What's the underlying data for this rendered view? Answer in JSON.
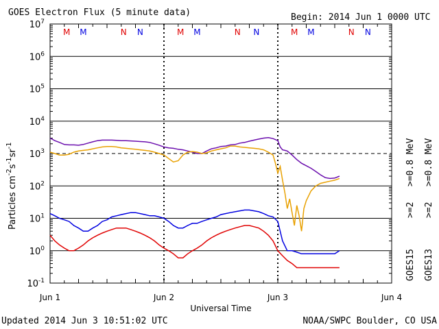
{
  "chart_data": {
    "type": "line",
    "title": "GOES Electron Flux (5 minute data)",
    "begin_label": "Begin: 2014 Jun 1 0000 UTC",
    "xlabel": "Universal Time",
    "ylabel_main": "Particles cm",
    "ylabel_exp1": "-2",
    "ylabel_s": "s",
    "ylabel_exp2": "-1",
    "ylabel_sr": "sr",
    "ylabel_exp3": "-1",
    "updated_label": "Updated 2014 Jun  3 10:51:02 UTC",
    "credit_label": "NOAA/SWPC Boulder, CO USA",
    "x_ticks": [
      "Jun 1",
      "Jun 2",
      "Jun 3",
      "Jun 4"
    ],
    "xlim_hours": [
      0,
      72
    ],
    "ylim": [
      0.1,
      10000000
    ],
    "y_ticks": [
      {
        "base": "10",
        "exp": "-1",
        "value": 0.1
      },
      {
        "base": "10",
        "exp": "0",
        "value": 1
      },
      {
        "base": "10",
        "exp": "1",
        "value": 10
      },
      {
        "base": "10",
        "exp": "2",
        "value": 100
      },
      {
        "base": "10",
        "exp": "3",
        "value": 1000
      },
      {
        "base": "10",
        "exp": "4",
        "value": 10000
      },
      {
        "base": "10",
        "exp": "5",
        "value": 100000
      },
      {
        "base": "10",
        "exp": "6",
        "value": 1000000
      },
      {
        "base": "10",
        "exp": "7",
        "value": 10000000
      }
    ],
    "y_scale": "log",
    "threshold": 1000,
    "markers": [
      {
        "label": "M",
        "hour": 3.5,
        "color": "#e00000"
      },
      {
        "label": "M",
        "hour": 7.0,
        "color": "#0000e0"
      },
      {
        "label": "N",
        "hour": 15.5,
        "color": "#e00000"
      },
      {
        "label": "N",
        "hour": 19.0,
        "color": "#0000e0"
      },
      {
        "label": "M",
        "hour": 27.5,
        "color": "#e00000"
      },
      {
        "label": "M",
        "hour": 31.0,
        "color": "#0000e0"
      },
      {
        "label": "N",
        "hour": 39.5,
        "color": "#e00000"
      },
      {
        "label": "N",
        "hour": 43.5,
        "color": "#0000e0"
      },
      {
        "label": "M",
        "hour": 51.5,
        "color": "#e00000"
      },
      {
        "label": "M",
        "hour": 55.0,
        "color": "#0000e0"
      },
      {
        "label": "N",
        "hour": 63.5,
        "color": "#e00000"
      },
      {
        "label": "N",
        "hour": 67.0,
        "color": "#0000e0"
      }
    ],
    "legend": [
      {
        "sat": "GOES15",
        "label": "0.8",
        "color": "#6a0dad"
      },
      {
        "sat": "GOES15",
        "label": "2",
        "color": "#0000e0"
      },
      {
        "sat": "GOES13",
        "label": "0.8",
        "color": "#e8a000"
      },
      {
        "sat": "GOES13",
        "label": "2",
        "color": "#e00000"
      }
    ],
    "legend_text": {
      "g15": "GOES15",
      "g13": "GOES13",
      "purple": ">=0.8 MeV",
      "blue": ">=2",
      "orange": ">=0.8 MeV",
      "red": ">=2"
    },
    "series": [
      {
        "name": ">=0.8 MeV",
        "color": "#6a0dad",
        "x": [
          0,
          1,
          2,
          3,
          4,
          5,
          6,
          7,
          8,
          9,
          10,
          11,
          12,
          13,
          14,
          15,
          16,
          17,
          18,
          19,
          20,
          21,
          22,
          23,
          24,
          25,
          26,
          27,
          28,
          29,
          30,
          31,
          32,
          33,
          34,
          35,
          36,
          37,
          38,
          39,
          40,
          41,
          42,
          43,
          44,
          45,
          46,
          47,
          48,
          48.5,
          49,
          49.5,
          50,
          51,
          52,
          53,
          54,
          55,
          56,
          57,
          58,
          59,
          60,
          61
        ],
        "y": [
          3000,
          2500,
          2200,
          1900,
          1850,
          1850,
          1800,
          1900,
          2100,
          2300,
          2500,
          2600,
          2600,
          2600,
          2550,
          2500,
          2500,
          2450,
          2400,
          2350,
          2300,
          2200,
          2000,
          1800,
          1600,
          1500,
          1450,
          1350,
          1300,
          1200,
          1100,
          1000,
          1000,
          1200,
          1400,
          1500,
          1650,
          1700,
          1850,
          1900,
          2100,
          2200,
          2400,
          2600,
          2800,
          3000,
          3100,
          2900,
          2500,
          1600,
          1300,
          1250,
          1200,
          900,
          650,
          500,
          420,
          350,
          280,
          220,
          180,
          170,
          175,
          200
        ]
      },
      {
        "name": ">=0.8 MeV",
        "color": "#e8a000",
        "x": [
          0,
          1,
          2,
          3,
          4,
          5,
          6,
          7,
          8,
          9,
          10,
          11,
          12,
          13,
          14,
          15,
          16,
          17,
          18,
          19,
          20,
          21,
          22,
          23,
          24,
          25,
          26,
          27,
          28,
          29,
          30,
          31,
          32,
          33,
          34,
          35,
          36,
          37,
          38,
          39,
          40,
          41,
          42,
          43,
          44,
          45,
          46,
          47,
          47.5,
          48,
          48.5,
          49,
          49.5,
          50,
          50.5,
          51,
          51.5,
          52,
          52.5,
          53,
          53.5,
          54,
          55,
          56,
          57,
          58,
          59,
          60,
          61
        ],
        "y": [
          1100,
          1000,
          900,
          900,
          950,
          1100,
          1200,
          1250,
          1300,
          1400,
          1500,
          1600,
          1650,
          1650,
          1600,
          1500,
          1450,
          1400,
          1350,
          1300,
          1250,
          1200,
          1100,
          1000,
          900,
          700,
          550,
          600,
          900,
          1100,
          1150,
          1100,
          1000,
          1050,
          1200,
          1300,
          1400,
          1500,
          1700,
          1700,
          1600,
          1550,
          1500,
          1450,
          1400,
          1300,
          1100,
          900,
          500,
          250,
          400,
          150,
          60,
          20,
          40,
          15,
          6,
          25,
          12,
          4,
          20,
          35,
          70,
          100,
          120,
          130,
          140,
          150,
          170
        ]
      },
      {
        "name": ">=2",
        "color": "#0000e0",
        "x": [
          0,
          1,
          2,
          3,
          4,
          5,
          6,
          7,
          8,
          9,
          10,
          11,
          12,
          13,
          14,
          15,
          16,
          17,
          18,
          19,
          20,
          21,
          22,
          23,
          24,
          25,
          26,
          27,
          28,
          29,
          30,
          31,
          32,
          33,
          34,
          35,
          36,
          37,
          38,
          39,
          40,
          41,
          42,
          43,
          44,
          45,
          46,
          47,
          48,
          49,
          50,
          51,
          52,
          53,
          54,
          55,
          56,
          57,
          58,
          59,
          60,
          61
        ],
        "y": [
          14,
          12,
          10,
          9,
          8,
          6,
          5,
          4,
          4,
          5,
          6,
          8,
          9,
          11,
          12,
          13,
          14,
          15,
          15,
          14,
          13,
          12,
          12,
          11,
          10,
          8,
          6,
          5,
          5,
          6,
          7,
          7,
          8,
          9,
          10,
          11,
          13,
          14,
          15,
          16,
          17,
          18,
          18,
          17,
          16,
          14,
          12,
          11,
          8,
          2,
          1,
          1,
          0.9,
          0.8,
          0.8,
          0.8,
          0.8,
          0.8,
          0.8,
          0.8,
          0.8,
          1
        ]
      },
      {
        "name": ">=2",
        "color": "#e00000",
        "x": [
          0,
          1,
          2,
          3,
          4,
          5,
          6,
          7,
          8,
          9,
          10,
          11,
          12,
          13,
          14,
          15,
          16,
          17,
          18,
          19,
          20,
          21,
          22,
          23,
          24,
          25,
          26,
          27,
          28,
          29,
          30,
          31,
          32,
          33,
          34,
          35,
          36,
          37,
          38,
          39,
          40,
          41,
          42,
          43,
          44,
          45,
          46,
          47,
          48,
          49,
          50,
          51,
          52,
          53,
          54,
          55,
          56,
          57,
          58,
          59,
          60,
          61
        ],
        "y": [
          3,
          2,
          1.5,
          1.2,
          1,
          1,
          1.2,
          1.5,
          2,
          2.5,
          3,
          3.5,
          4,
          4.5,
          5,
          5,
          5,
          4.5,
          4,
          3.5,
          3,
          2.5,
          2,
          1.5,
          1.2,
          1,
          0.8,
          0.6,
          0.6,
          0.8,
          1,
          1.2,
          1.5,
          2,
          2.5,
          3,
          3.5,
          4,
          4.5,
          5,
          5.5,
          6,
          6,
          5.5,
          5,
          4,
          3,
          2,
          1,
          0.7,
          0.5,
          0.4,
          0.3,
          0.3,
          0.3,
          0.3,
          0.3,
          0.3,
          0.3,
          0.3,
          0.3,
          0.3
        ]
      }
    ]
  }
}
